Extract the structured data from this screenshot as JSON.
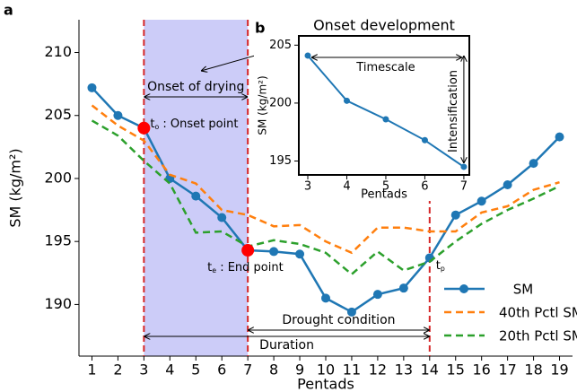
{
  "chart_data": [
    {
      "type": "line",
      "panel_label": "a",
      "xlabel": "Pentads",
      "ylabel": "SM (kg/m²)",
      "x": [
        1,
        2,
        3,
        4,
        5,
        6,
        7,
        8,
        9,
        10,
        11,
        12,
        13,
        14,
        15,
        16,
        17,
        18,
        19
      ],
      "series": [
        {
          "name": "SM",
          "color": "#1f77b4",
          "style": "solid",
          "marker": true,
          "values": [
            207.2,
            205.0,
            204.0,
            200.0,
            198.6,
            196.9,
            194.3,
            194.2,
            194.0,
            190.5,
            189.4,
            190.8,
            191.3,
            193.7,
            197.1,
            198.2,
            199.5,
            201.2,
            203.3
          ]
        },
        {
          "name": "40th Pctl SM",
          "color": "#ff7f0e",
          "style": "dashed",
          "marker": false,
          "values": [
            205.8,
            204.2,
            203.0,
            200.3,
            199.6,
            197.5,
            197.1,
            196.2,
            196.3,
            195.0,
            194.1,
            196.1,
            196.1,
            195.8,
            195.8,
            197.3,
            197.8,
            199.1,
            199.7
          ]
        },
        {
          "name": "20th Pctl SM",
          "color": "#2ca02c",
          "style": "dashed",
          "marker": false,
          "values": [
            204.6,
            203.4,
            201.4,
            199.6,
            195.7,
            195.8,
            194.6,
            195.1,
            194.8,
            194.1,
            192.4,
            194.2,
            192.7,
            193.4,
            195.0,
            196.4,
            197.5,
            198.4,
            199.4
          ]
        }
      ],
      "xlim": [
        0.5,
        19.5
      ],
      "xticks": [
        1,
        2,
        3,
        4,
        5,
        6,
        7,
        8,
        9,
        10,
        11,
        12,
        13,
        14,
        15,
        16,
        17,
        18,
        19
      ],
      "ylim": [
        185.9,
        212.6
      ],
      "yticks": [
        190,
        195,
        200,
        205,
        210
      ],
      "span": [
        3,
        7
      ],
      "span_color": "#ccccf8",
      "vlines": [
        3,
        7,
        14
      ],
      "vline_color": "#d62728",
      "highlight_x": [
        3,
        7
      ],
      "highlight_color": "#ff0000",
      "legend": "lower right",
      "annotations": [
        {
          "text": "Onset of drying"
        },
        {
          "text": "t",
          "sub": "o",
          "suffix": " : Onset point"
        },
        {
          "text": "t",
          "sub": "e",
          "suffix": " : End point"
        },
        {
          "text": "t",
          "sub": "p"
        },
        {
          "text": "Drought condition"
        },
        {
          "text": "Duration"
        }
      ]
    },
    {
      "type": "line",
      "panel_label": "b",
      "title": "Onset development",
      "xlabel": "Pentads",
      "ylabel": "SM (kg/m²)",
      "x": [
        3,
        4,
        5,
        6,
        7
      ],
      "series": [
        {
          "name": "SM",
          "color": "#1f77b4",
          "values": [
            204.1,
            200.2,
            198.6,
            196.8,
            194.5
          ]
        }
      ],
      "xlim": [
        2.77,
        7.14
      ],
      "xticks": [
        3,
        4,
        5,
        6,
        7
      ],
      "ylim": [
        193.8,
        205.8
      ],
      "yticks": [
        195,
        200,
        205
      ],
      "annotations": [
        {
          "text": "Timescale"
        },
        {
          "text": "Intensification"
        }
      ]
    }
  ]
}
